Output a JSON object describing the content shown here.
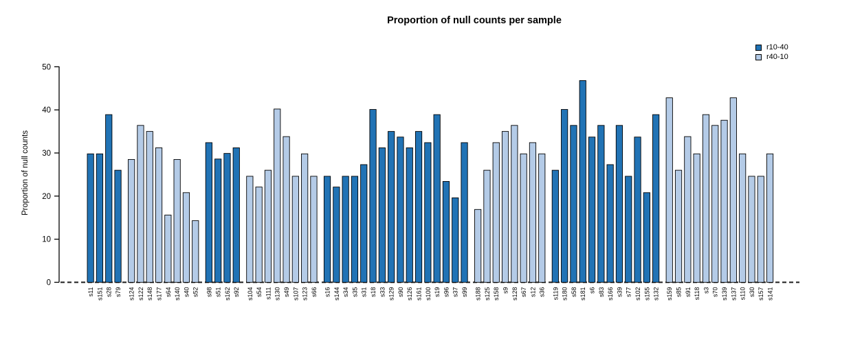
{
  "chart_data": {
    "type": "bar",
    "title": "Proportion of null counts per sample",
    "xlabel": "",
    "ylabel": "Proportion of null counts",
    "ylim": [
      0,
      50
    ],
    "yticks": [
      0,
      10,
      20,
      30,
      40,
      50
    ],
    "grid": false,
    "legend_position": "top-right",
    "bar_edge_color": "#000000",
    "zero_line_style": "dashed",
    "series": [
      {
        "name": "r10-40",
        "color": "#2173B5"
      },
      {
        "name": "r40-10",
        "color": "#B4CBE7"
      }
    ],
    "groups": [
      {
        "series": "r10-40",
        "bars": [
          {
            "label": "s11",
            "value": 29.8
          },
          {
            "label": "s151",
            "value": 29.8
          },
          {
            "label": "s28",
            "value": 38.9
          },
          {
            "label": "s79",
            "value": 26.0
          }
        ]
      },
      {
        "series": "r40-10",
        "bars": [
          {
            "label": "s124",
            "value": 28.5
          },
          {
            "label": "s122",
            "value": 36.4
          },
          {
            "label": "s148",
            "value": 35.0
          },
          {
            "label": "s177",
            "value": 31.2
          },
          {
            "label": "s64",
            "value": 15.6
          },
          {
            "label": "s140",
            "value": 28.5
          },
          {
            "label": "s40",
            "value": 20.8
          },
          {
            "label": "s52",
            "value": 14.3
          }
        ]
      },
      {
        "series": "r10-40",
        "bars": [
          {
            "label": "s98",
            "value": 32.4
          },
          {
            "label": "s51",
            "value": 28.6
          },
          {
            "label": "s162",
            "value": 29.9
          },
          {
            "label": "s92",
            "value": 31.2
          }
        ]
      },
      {
        "series": "r40-10",
        "bars": [
          {
            "label": "s104",
            "value": 24.6
          },
          {
            "label": "s54",
            "value": 22.1
          },
          {
            "label": "s111",
            "value": 26.0
          },
          {
            "label": "s130",
            "value": 40.2
          },
          {
            "label": "s49",
            "value": 33.8
          },
          {
            "label": "s107",
            "value": 24.6
          },
          {
            "label": "s123",
            "value": 29.8
          },
          {
            "label": "s66",
            "value": 24.6
          }
        ]
      },
      {
        "series": "r10-40",
        "bars": [
          {
            "label": "s16",
            "value": 24.6
          },
          {
            "label": "s144",
            "value": 22.1
          },
          {
            "label": "s34",
            "value": 24.6
          },
          {
            "label": "s35",
            "value": 24.6
          },
          {
            "label": "s31",
            "value": 27.3
          },
          {
            "label": "s18",
            "value": 40.1
          },
          {
            "label": "s33",
            "value": 31.2
          },
          {
            "label": "s129",
            "value": 35.0
          },
          {
            "label": "s90",
            "value": 33.7
          },
          {
            "label": "s126",
            "value": 31.2
          },
          {
            "label": "s161",
            "value": 35.0
          },
          {
            "label": "s100",
            "value": 32.4
          },
          {
            "label": "s19",
            "value": 38.9
          },
          {
            "label": "s96",
            "value": 23.4
          },
          {
            "label": "s37",
            "value": 19.6
          },
          {
            "label": "s99",
            "value": 32.4
          }
        ]
      },
      {
        "series": "r40-10",
        "bars": [
          {
            "label": "s188",
            "value": 16.9
          },
          {
            "label": "s125",
            "value": 26.0
          },
          {
            "label": "s158",
            "value": 32.4
          },
          {
            "label": "s9",
            "value": 35.0
          },
          {
            "label": "s128",
            "value": 36.4
          },
          {
            "label": "s67",
            "value": 29.8
          },
          {
            "label": "s12",
            "value": 32.4
          },
          {
            "label": "s36",
            "value": 29.8
          }
        ]
      },
      {
        "series": "r10-40",
        "bars": [
          {
            "label": "s119",
            "value": 26.0
          },
          {
            "label": "s180",
            "value": 40.1
          },
          {
            "label": "s58",
            "value": 36.4
          },
          {
            "label": "s181",
            "value": 46.8
          },
          {
            "label": "s6",
            "value": 33.7
          },
          {
            "label": "s83",
            "value": 36.4
          },
          {
            "label": "s166",
            "value": 27.3
          },
          {
            "label": "s39",
            "value": 36.4
          },
          {
            "label": "s77",
            "value": 24.6
          },
          {
            "label": "s102",
            "value": 33.7
          },
          {
            "label": "s155",
            "value": 20.8
          },
          {
            "label": "s132",
            "value": 38.9
          }
        ]
      },
      {
        "series": "r40-10",
        "bars": [
          {
            "label": "s159",
            "value": 42.8
          },
          {
            "label": "s85",
            "value": 26.0
          },
          {
            "label": "s91",
            "value": 33.8
          },
          {
            "label": "s118",
            "value": 29.8
          },
          {
            "label": "s3",
            "value": 38.9
          },
          {
            "label": "s70",
            "value": 36.4
          },
          {
            "label": "s139",
            "value": 37.6
          },
          {
            "label": "s137",
            "value": 42.8
          },
          {
            "label": "s110",
            "value": 29.8
          },
          {
            "label": "s30",
            "value": 24.6
          },
          {
            "label": "s157",
            "value": 24.6
          },
          {
            "label": "s141",
            "value": 29.8
          }
        ]
      }
    ]
  }
}
